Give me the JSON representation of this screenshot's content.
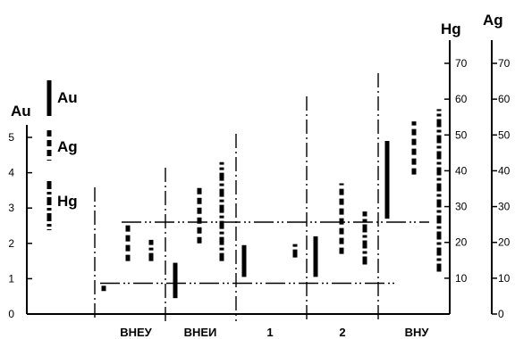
{
  "chart_data": {
    "type": "range",
    "axes": {
      "au": {
        "title": "Au",
        "range": [
          0,
          5
        ],
        "ticks": [
          0,
          1,
          2,
          3,
          4,
          5
        ]
      },
      "hg": {
        "title": "Hg",
        "range": [
          0,
          70
        ],
        "ticks": [
          10,
          20,
          30,
          40,
          50,
          60,
          70
        ]
      },
      "ag": {
        "title": "Ag",
        "range": [
          0,
          70
        ],
        "ticks": [
          0,
          10,
          20,
          30,
          40,
          50,
          60,
          70
        ]
      }
    },
    "legend": [
      {
        "label": "Au",
        "style": "solid"
      },
      {
        "label": "Ag",
        "style": "dashed"
      },
      {
        "label": "Hg",
        "style": "dash-dot"
      }
    ],
    "groups": [
      "ВНЕУ",
      "ВНЕИ",
      "1",
      "2",
      "ВНУ"
    ],
    "bars": [
      {
        "group": "ВНЕУ",
        "element": "Au",
        "style": "solid",
        "low": 0.65,
        "high": 0.8
      },
      {
        "group": "ВНЕУ",
        "element": "Ag",
        "style": "dashed",
        "low": 1.5,
        "high": 2.55
      },
      {
        "group": "ВНЕУ",
        "element": "Hg",
        "style": "dash-dot",
        "low": 1.5,
        "high": 2.1
      },
      {
        "group": "ВНЕИ",
        "element": "Au",
        "style": "solid",
        "low": 0.45,
        "high": 1.45
      },
      {
        "group": "ВНЕИ",
        "element": "Ag",
        "style": "dashed",
        "low": 2.0,
        "high": 3.6
      },
      {
        "group": "ВНЕИ",
        "element": "Hg",
        "style": "dash-dot",
        "low": 1.5,
        "high": 4.3
      },
      {
        "group": "1",
        "element": "Au",
        "style": "solid",
        "low": 1.05,
        "high": 1.95
      },
      {
        "group": "1",
        "element": "Hg",
        "style": "dash-dot",
        "low": 1.6,
        "high": 2.0
      },
      {
        "group": "2",
        "element": "Au",
        "style": "solid",
        "low": 1.05,
        "high": 2.2
      },
      {
        "group": "2",
        "element": "Ag",
        "style": "dashed",
        "low": 1.7,
        "high": 3.7
      },
      {
        "group": "2",
        "element": "Hg",
        "style": "dash-dot",
        "low": 1.4,
        "high": 2.9
      },
      {
        "group": "ВНУ",
        "element": "Au",
        "style": "solid",
        "low": 2.7,
        "high": 4.9
      },
      {
        "group": "ВНУ",
        "element": "Ag",
        "style": "dashed",
        "low": 3.95,
        "high": 5.45
      },
      {
        "group": "ВНУ",
        "element": "Hg",
        "style": "dash-dot",
        "low": 1.2,
        "high": 5.8
      }
    ],
    "reference_lines": [
      {
        "style": "dash-dot-dot",
        "value": 0.87,
        "from_group": "ВНЕУ",
        "to_group": "ВНУ"
      },
      {
        "style": "dash-dot-dot",
        "value": 2.6,
        "from_group": "ВНЕУ",
        "to_group": "ВНУ"
      }
    ],
    "grid": false
  }
}
